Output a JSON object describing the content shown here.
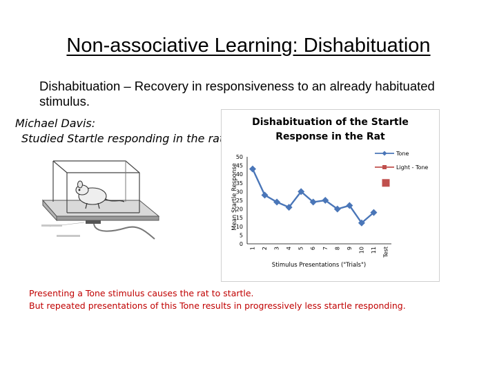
{
  "slide": {
    "title": "Non-associative Learning: Dishabituation",
    "definition": "Dishabituation – Recovery in responsiveness to an already habituated stimulus.",
    "researcher_name": "Michael Davis:",
    "researcher_note": "Studied Startle responding in the rat",
    "caption_line1": "Presenting a Tone stimulus causes the rat to startle.",
    "caption_line2": "But repeated presentations of this Tone results in progressively less startle responding."
  },
  "colors": {
    "tone": "#4a76b8",
    "light_tone": "#c0504d",
    "caption": "#c00000"
  },
  "chart_data": {
    "type": "line",
    "title_line1": "Dishabituation of the Startle",
    "title_line2": "Response in the Rat",
    "xlabel": "Stimulus Presentations (\"Trials\")",
    "ylabel": "Mean Startle Response",
    "ylim": [
      0,
      50
    ],
    "yticks": [
      0,
      5,
      10,
      15,
      20,
      25,
      30,
      35,
      40,
      45,
      50
    ],
    "categories": [
      "1",
      "2",
      "3",
      "4",
      "5",
      "6",
      "7",
      "8",
      "9",
      "10",
      "11",
      "Test"
    ],
    "legend_position": "top-right",
    "grid": false,
    "series": [
      {
        "name": "Tone",
        "marker": "diamond",
        "values": [
          43,
          28,
          24,
          21,
          30,
          24,
          25,
          20,
          22,
          12,
          18,
          null
        ]
      },
      {
        "name": "Light - Tone",
        "marker": "square",
        "values": [
          null,
          null,
          null,
          null,
          null,
          null,
          null,
          null,
          null,
          null,
          null,
          35
        ]
      }
    ]
  }
}
